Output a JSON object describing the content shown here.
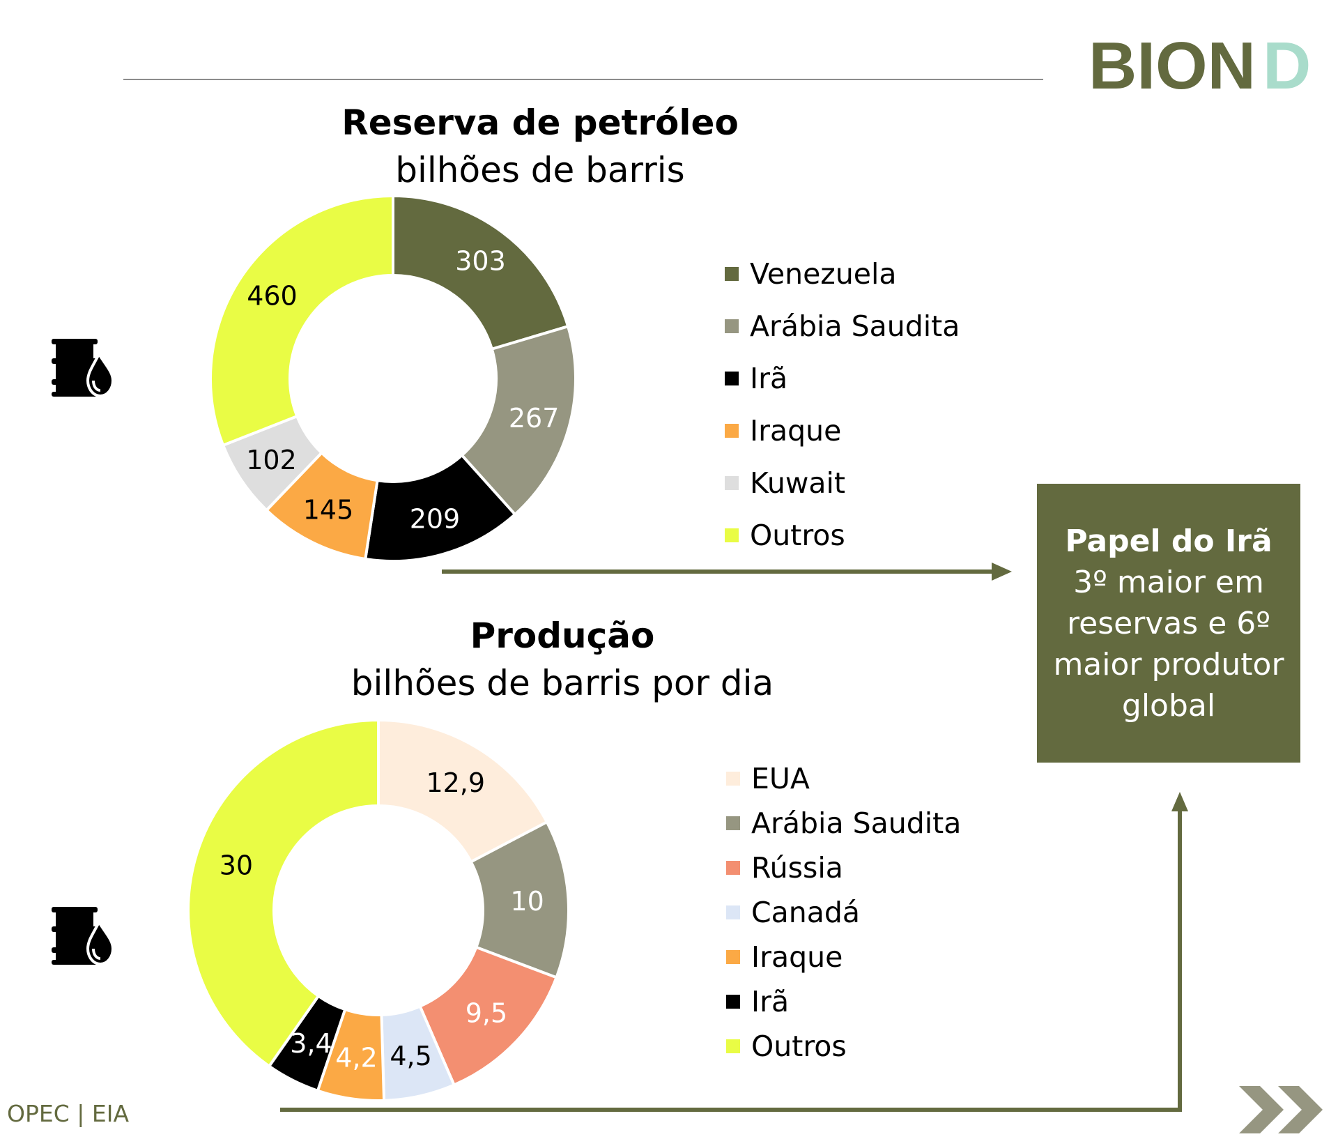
{
  "brand": {
    "logo_text": "BIOND"
  },
  "colors": {
    "brand_olive": "#636a3f",
    "brand_mint": "#a9dccb",
    "rule": "#8c8c8c",
    "arrow": "#636a3f"
  },
  "icons": {
    "barrel": "oil-barrel-drop-icon",
    "next": "double-chevron-right-icon"
  },
  "chart_data": [
    {
      "type": "donut",
      "title": "Reserva de petróleo",
      "subtitle": "bilhões de barris",
      "categories": [
        "Venezuela",
        "Arábia Saudita",
        "Irã",
        "Iraque",
        "Kuwait",
        "Outros"
      ],
      "values": [
        303,
        267,
        209,
        145,
        102,
        460
      ],
      "labels": [
        "303",
        "267",
        "209",
        "145",
        "102",
        "460"
      ],
      "colors": [
        "#636a3f",
        "#969681",
        "#000000",
        "#fba945",
        "#dedede",
        "#e9fc45"
      ],
      "label_colors": [
        "#ffffff",
        "#ffffff",
        "#ffffff",
        "#000000",
        "#000000",
        "#000000"
      ],
      "legend": "right"
    },
    {
      "type": "donut",
      "title": "Produção",
      "subtitle": "bilhões de barris por dia",
      "categories": [
        "EUA",
        "Arábia Saudita",
        "Rússia",
        "Canadá",
        "Iraque",
        "Irã",
        "Outros"
      ],
      "values": [
        12.9,
        10,
        9.5,
        4.5,
        4.2,
        3.4,
        30
      ],
      "labels": [
        "12,9",
        "10",
        "9,5",
        "4,5",
        "4,2",
        "3,4",
        "30"
      ],
      "colors": [
        "#feeddc",
        "#969681",
        "#f38f71",
        "#dce6f6",
        "#fba945",
        "#000000",
        "#e9fc45"
      ],
      "label_colors": [
        "#000000",
        "#ffffff",
        "#ffffff",
        "#000000",
        "#ffffff",
        "#ffffff",
        "#000000"
      ],
      "legend": "right"
    }
  ],
  "callout": {
    "title": "Papel do Irã",
    "body": "3º maior em reservas e 6º maior produtor global"
  },
  "footer": {
    "source": "OPEC | EIA"
  }
}
